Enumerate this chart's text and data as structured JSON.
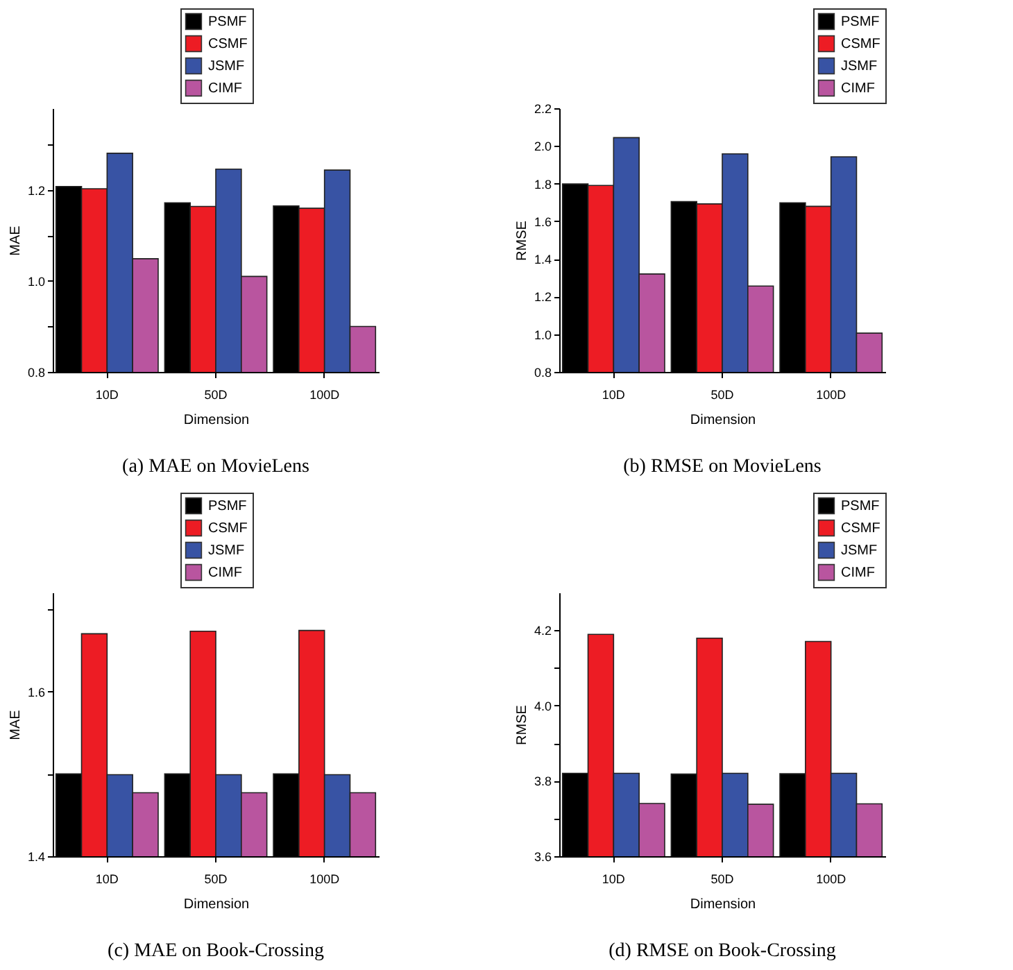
{
  "chart_data": [
    {
      "type": "bar",
      "title": "(a) MAE on MovieLens",
      "xlabel": "Dimension",
      "ylabel": "MAE",
      "categories": [
        "10D",
        "50D",
        "100D"
      ],
      "ylim": [
        0.8,
        1.38
      ],
      "yticks": [
        {
          "value": 0.8,
          "label": "0.8"
        },
        {
          "value": 0.9,
          "label": null
        },
        {
          "value": 1,
          "label": "1.0"
        },
        {
          "value": 1.1,
          "label": null
        },
        {
          "value": 1.2,
          "label": "1.2"
        },
        {
          "value": 1.3,
          "label": null
        }
      ],
      "grid": false,
      "legend": "top",
      "series": [
        {
          "name": "PSMF",
          "color": "#000000",
          "values": [
            1.208,
            1.172,
            1.165
          ]
        },
        {
          "name": "CSMF",
          "color": "#ed1c24",
          "values": [
            1.203,
            1.164,
            1.16
          ]
        },
        {
          "name": "JSMF",
          "color": "#3853a4",
          "values": [
            1.281,
            1.246,
            1.244
          ]
        },
        {
          "name": "CIMF",
          "color": "#b9559f",
          "values": [
            1.049,
            1.01,
            0.9
          ]
        }
      ]
    },
    {
      "type": "bar",
      "title": "(b) RMSE on MovieLens",
      "xlabel": "Dimension",
      "ylabel": "RMSE",
      "categories": [
        "10D",
        "50D",
        "100D"
      ],
      "ylim": [
        0.8,
        2.2
      ],
      "yticks": [
        {
          "value": 0.8,
          "label": "0.8"
        },
        {
          "value": 1,
          "label": "1.0"
        },
        {
          "value": 1.2,
          "label": "1.2"
        },
        {
          "value": 1.4,
          "label": "1.4"
        },
        {
          "value": 1.6,
          "label": "1.6"
        },
        {
          "value": 1.8,
          "label": "1.8"
        },
        {
          "value": 2,
          "label": "2.0"
        },
        {
          "value": 2.2,
          "label": "2.2"
        }
      ],
      "grid": false,
      "legend": "top right",
      "series": [
        {
          "name": "PSMF",
          "color": "#000000",
          "values": [
            1.798,
            1.704,
            1.698
          ]
        },
        {
          "name": "CSMF",
          "color": "#ed1c24",
          "values": [
            1.79,
            1.692,
            1.679
          ]
        },
        {
          "name": "JSMF",
          "color": "#3853a4",
          "values": [
            2.044,
            1.958,
            1.942
          ]
        },
        {
          "name": "CIMF",
          "color": "#b9559f",
          "values": [
            1.32,
            1.256,
            1.006
          ]
        }
      ]
    },
    {
      "type": "bar",
      "title": "(c) MAE on Book-Crossing",
      "xlabel": "Dimension",
      "ylabel": "MAE",
      "categories": [
        "10D",
        "50D",
        "100D"
      ],
      "ylim": [
        1.4,
        1.72
      ],
      "yticks": [
        {
          "value": 1.4,
          "label": "1.4"
        },
        {
          "value": 1.5,
          "label": null
        },
        {
          "value": 1.6,
          "label": "1.6"
        },
        {
          "value": 1.7,
          "label": null
        }
      ],
      "grid": false,
      "legend": "top",
      "series": [
        {
          "name": "PSMF",
          "color": "#000000",
          "values": [
            1.5,
            1.5,
            1.5
          ]
        },
        {
          "name": "CSMF",
          "color": "#ed1c24",
          "values": [
            1.67,
            1.673,
            1.674
          ]
        },
        {
          "name": "JSMF",
          "color": "#3853a4",
          "values": [
            1.499,
            1.499,
            1.499
          ]
        },
        {
          "name": "CIMF",
          "color": "#b9559f",
          "values": [
            1.477,
            1.477,
            1.477
          ]
        }
      ]
    },
    {
      "type": "bar",
      "title": "(d) RMSE on Book-Crossing",
      "xlabel": "Dimension",
      "ylabel": "RMSE",
      "categories": [
        "10D",
        "50D",
        "100D"
      ],
      "ylim": [
        3.6,
        4.3
      ],
      "yticks": [
        {
          "value": 3.6,
          "label": "3.6"
        },
        {
          "value": 3.7,
          "label": null
        },
        {
          "value": 3.8,
          "label": "3.8"
        },
        {
          "value": 3.9,
          "label": null
        },
        {
          "value": 4,
          "label": "4.0"
        },
        {
          "value": 4.1,
          "label": null
        },
        {
          "value": 4.2,
          "label": "4.2"
        }
      ],
      "grid": false,
      "legend": "top right",
      "series": [
        {
          "name": "PSMF",
          "color": "#000000",
          "values": [
            3.82,
            3.818,
            3.819
          ]
        },
        {
          "name": "CSMF",
          "color": "#ed1c24",
          "values": [
            4.189,
            4.179,
            4.17
          ]
        },
        {
          "name": "JSMF",
          "color": "#3853a4",
          "values": [
            3.82,
            3.82,
            3.82
          ]
        },
        {
          "name": "CIMF",
          "color": "#b9559f",
          "values": [
            3.74,
            3.738,
            3.739
          ]
        }
      ]
    }
  ]
}
